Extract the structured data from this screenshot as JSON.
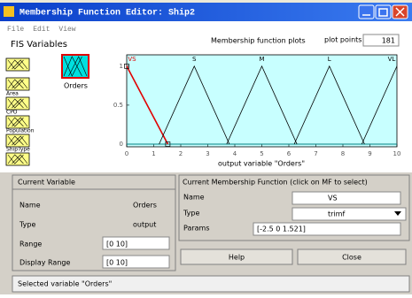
{
  "window": {
    "title": "Membership Function Editor: Ship2",
    "menu": [
      "File",
      "Edit",
      "View"
    ]
  },
  "fis_variables": {
    "title": "FIS Variables",
    "inputs": [
      "Area",
      "CPO",
      "Population",
      "ShipType"
    ],
    "output": "Orders"
  },
  "plot": {
    "title": "Membership function plots",
    "points_label": "plot points:",
    "points": "181",
    "xlabel": "output variable \"Orders\"",
    "xlim": [
      0,
      10
    ],
    "ylim": [
      0,
      1.1
    ],
    "xticks": [
      0,
      1,
      2,
      3,
      4,
      5,
      6,
      7,
      8,
      9,
      10
    ],
    "yticks": [
      0,
      0.5,
      1
    ],
    "mfs": [
      {
        "name": "VS",
        "params": [
          -2.5,
          0,
          1.521
        ],
        "color": "#e00000"
      },
      {
        "name": "S",
        "params": [
          1.2,
          2.5,
          3.8
        ],
        "color": "#000000"
      },
      {
        "name": "M",
        "params": [
          3.7,
          5,
          6.3
        ],
        "color": "#000000"
      },
      {
        "name": "L",
        "params": [
          6.2,
          7.5,
          8.8
        ],
        "color": "#000000"
      },
      {
        "name": "VL",
        "params": [
          8.7,
          10,
          11.3
        ],
        "color": "#000000"
      }
    ]
  },
  "current_variable": {
    "title": "Current Variable",
    "name_label": "Name",
    "name": "Orders",
    "type_label": "Type",
    "type": "output",
    "range_label": "Range",
    "range": "[0 10]",
    "display_range_label": "Display Range",
    "display_range": "[0 10]"
  },
  "current_mf": {
    "title": "Current Membership Function (click on MF to select)",
    "name_label": "Name",
    "name": "VS",
    "type_label": "Type",
    "type": "trimf",
    "params_label": "Params",
    "params": "[-2.5 0 1.521]"
  },
  "buttons": {
    "help": "Help",
    "close": "Close"
  },
  "status": "Selected variable \"Orders\""
}
